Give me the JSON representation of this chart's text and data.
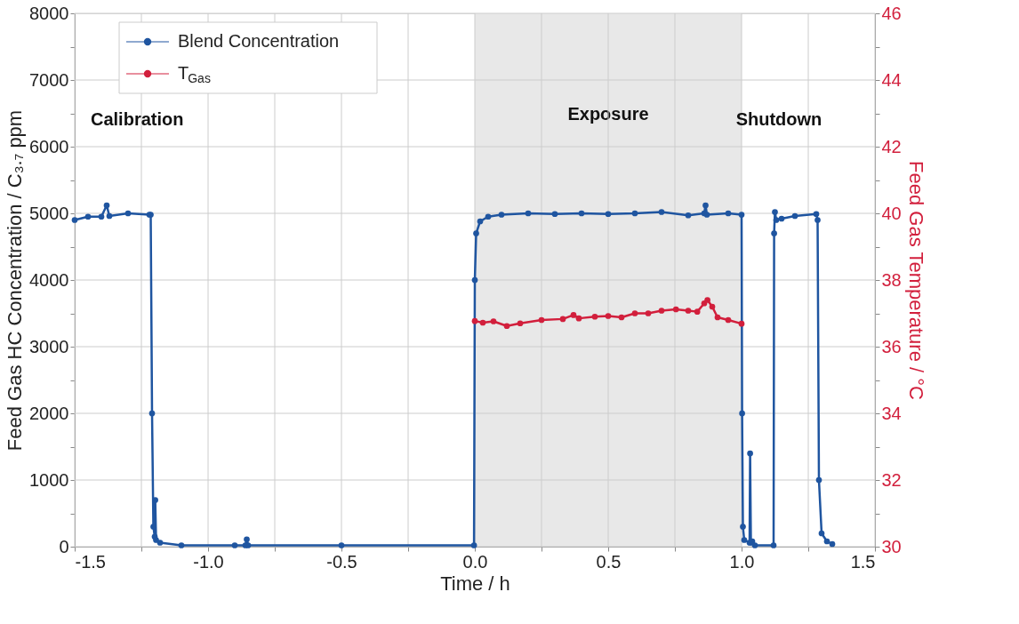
{
  "chart_data": {
    "type": "line",
    "xlabel": "Time / h",
    "ylabel": "Feed Gas HC Concentration / C₃.₇ ppm",
    "y2label": "Feed Gas Temperature / °C",
    "xlim": [
      -1.5,
      1.5
    ],
    "xticks": [
      {
        "value": -1.5,
        "label": "-1.5"
      },
      {
        "value": -1.25,
        "label": null
      },
      {
        "value": -1.0,
        "label": "-1.0"
      },
      {
        "value": -0.75,
        "label": null
      },
      {
        "value": -0.5,
        "label": "-0.5"
      },
      {
        "value": -0.25,
        "label": null
      },
      {
        "value": 0,
        "label": "0.0"
      },
      {
        "value": 0.25,
        "label": null
      },
      {
        "value": 0.5,
        "label": "0.5"
      },
      {
        "value": 0.75,
        "label": null
      },
      {
        "value": 1.0,
        "label": "1.0"
      },
      {
        "value": 1.25,
        "label": null
      },
      {
        "value": 1.5,
        "label": "1.5"
      }
    ],
    "ylim": [
      0,
      8000
    ],
    "yticks": [
      0,
      {
        "value": 500,
        "label": null
      },
      1000,
      {
        "value": 1500,
        "label": null
      },
      2000,
      {
        "value": 2500,
        "label": null
      },
      3000,
      {
        "value": 3500,
        "label": null
      },
      4000,
      {
        "value": 4500,
        "label": null
      },
      5000,
      {
        "value": 5500,
        "label": null
      },
      6000,
      {
        "value": 6500,
        "label": null
      },
      7000,
      {
        "value": 7500,
        "label": null
      },
      8000
    ],
    "y2lim": [
      30,
      46
    ],
    "y2ticks": [
      30,
      {
        "value": 31,
        "label": null
      },
      32,
      {
        "value": 33,
        "label": null
      },
      34,
      {
        "value": 35,
        "label": null
      },
      36,
      {
        "value": 37,
        "label": null
      },
      38,
      {
        "value": 39,
        "label": null
      },
      40,
      {
        "value": 41,
        "label": null
      },
      42,
      {
        "value": 43,
        "label": null
      },
      44,
      {
        "value": 45,
        "label": null
      },
      46
    ],
    "grid": true,
    "legend": "top left",
    "marker": "circle",
    "line_style": "solid",
    "bands": [
      {
        "axis": "x",
        "from": 0,
        "to": 1,
        "label": "Exposure",
        "color": "#e8e8e8"
      }
    ],
    "annotations": [
      "Calibration",
      "Shutdown"
    ],
    "series": [
      {
        "name": "Blend Concentration",
        "color": "#1f55a0",
        "x": [
          -1.5,
          -1.45,
          -1.4,
          -1.38,
          -1.37,
          -1.3,
          -1.22,
          -1.215,
          -1.21,
          -1.205,
          -1.2,
          -1.198,
          -1.195,
          -1.18,
          -1.1,
          -0.9,
          -0.86,
          -0.855,
          -0.85,
          -0.5,
          -0.003,
          0.0,
          0.005,
          0.02,
          0.05,
          0.1,
          0.2,
          0.3,
          0.4,
          0.5,
          0.6,
          0.7,
          0.8,
          0.86,
          0.865,
          0.87,
          0.95,
          1.0,
          1.002,
          1.005,
          1.01,
          1.03,
          1.032,
          1.035,
          1.04,
          1.05,
          1.12,
          1.122,
          1.125,
          1.13,
          1.15,
          1.2,
          1.28,
          1.285,
          1.29,
          1.3,
          1.32,
          1.34
        ],
        "values": [
          4900,
          4950,
          4950,
          5120,
          4960,
          5000,
          4980,
          4980,
          2000,
          300,
          150,
          700,
          100,
          60,
          20,
          20,
          20,
          110,
          20,
          20,
          20,
          4000,
          4700,
          4880,
          4950,
          4980,
          5000,
          4990,
          5000,
          4990,
          5000,
          5020,
          4970,
          5000,
          5120,
          4980,
          5000,
          4980,
          2000,
          300,
          100,
          60,
          1400,
          60,
          80,
          20,
          20,
          4700,
          5020,
          4900,
          4920,
          4960,
          4990,
          4900,
          1000,
          200,
          80,
          40
        ]
      },
      {
        "name": "T$_{Gas}$",
        "color": "#d21f3c",
        "axis": "y2",
        "x": [
          0,
          0.03,
          0.07,
          0.12,
          0.17,
          0.25,
          0.33,
          0.37,
          0.39,
          0.45,
          0.5,
          0.55,
          0.6,
          0.65,
          0.7,
          0.754,
          0.8,
          0.834,
          0.86,
          0.872,
          0.89,
          0.91,
          0.95,
          1.0
        ],
        "values": [
          36.77,
          36.72,
          36.76,
          36.62,
          36.7,
          36.8,
          36.83,
          36.95,
          36.85,
          36.9,
          36.92,
          36.88,
          37.0,
          37.0,
          37.08,
          37.12,
          37.08,
          37.05,
          37.3,
          37.4,
          37.2,
          36.88,
          36.8,
          36.69
        ]
      }
    ]
  }
}
